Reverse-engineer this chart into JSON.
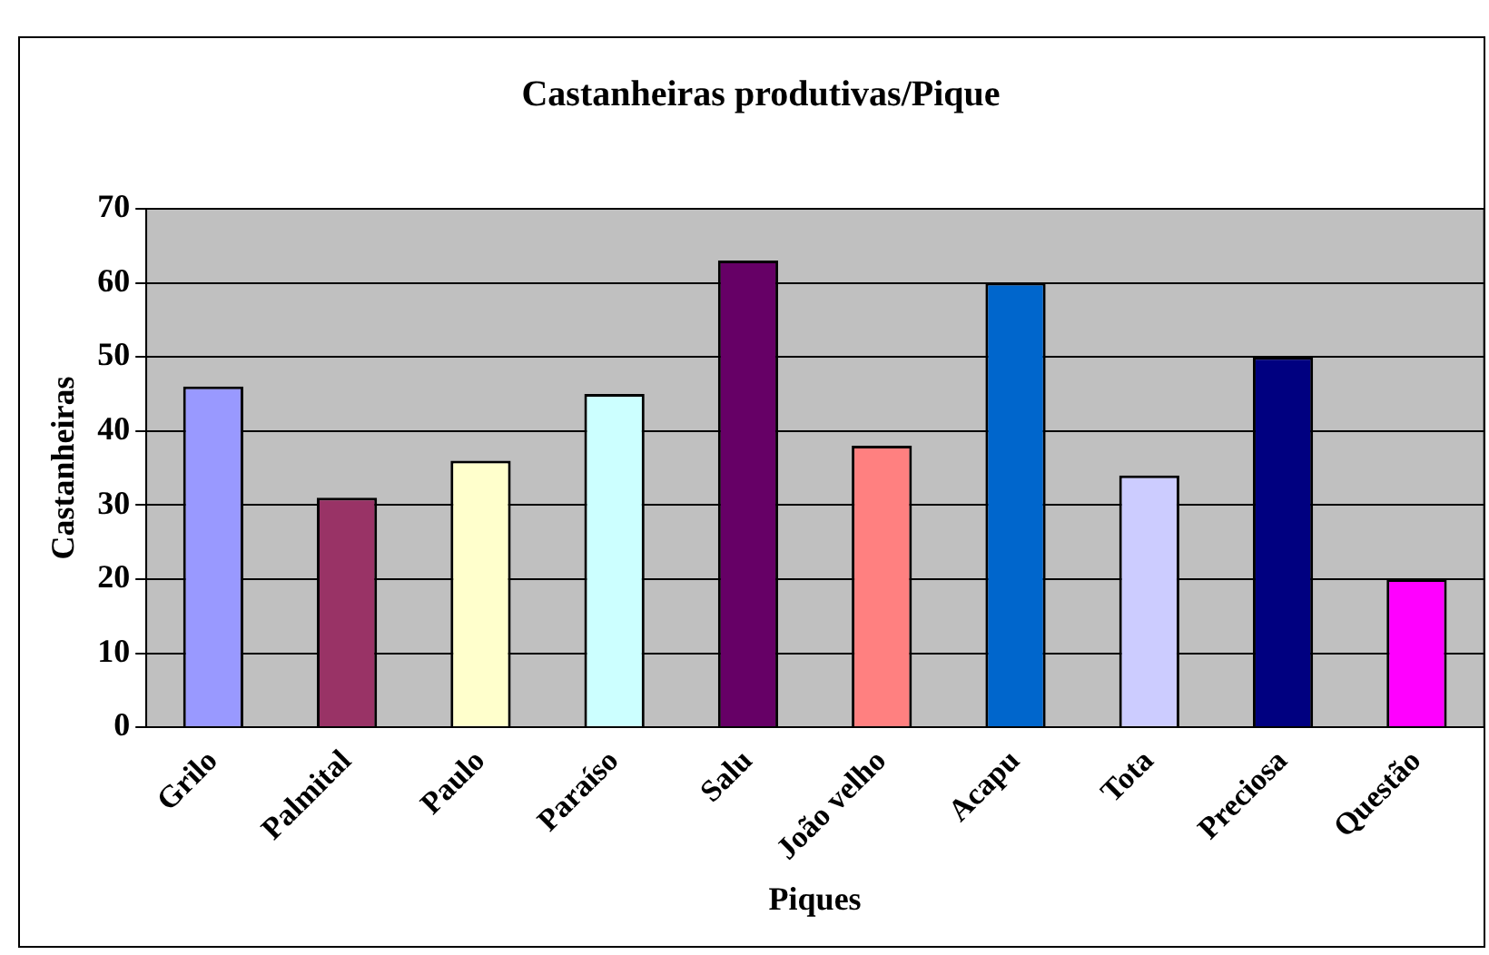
{
  "chart_data": {
    "type": "bar",
    "title": "Castanheiras produtivas/Pique",
    "xlabel": "Piques",
    "ylabel": "Castanheiras",
    "categories": [
      "Grilo",
      "Palmital",
      "Paulo",
      "Paraíso",
      "Salu",
      "João velho",
      "Acapu",
      "Tota",
      "Preciosa",
      "Questão"
    ],
    "values": [
      46,
      31,
      36,
      45,
      63,
      38,
      60,
      34,
      50,
      20
    ],
    "colors": [
      "#9999ff",
      "#993366",
      "#ffffcc",
      "#ccffff",
      "#660066",
      "#ff8080",
      "#0066cc",
      "#ccccff",
      "#000080",
      "#ff00ff"
    ],
    "ylim": [
      0,
      70
    ],
    "yticks": [
      0,
      10,
      20,
      30,
      40,
      50,
      60,
      70
    ],
    "grid": "y",
    "legend": false
  }
}
